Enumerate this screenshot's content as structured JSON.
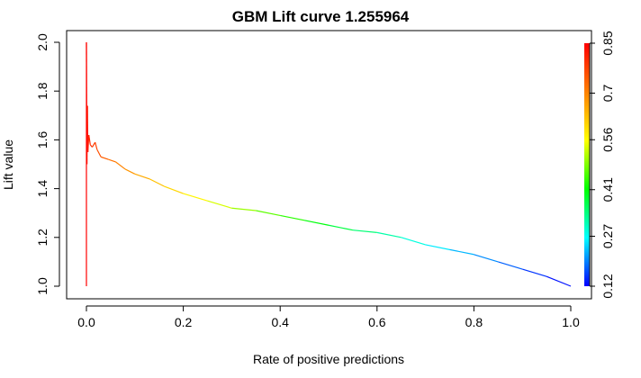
{
  "chart_data": {
    "type": "line",
    "title": "GBM Lift curve 1.255964",
    "xlabel": "Rate of positive predictions",
    "ylabel": "Lift value",
    "xlim": [
      0.0,
      1.0
    ],
    "ylim": [
      1.0,
      2.0
    ],
    "x_ticks": [
      "0.0",
      "0.2",
      "0.4",
      "0.6",
      "0.8",
      "1.0"
    ],
    "y_ticks": [
      "1.0",
      "1.2",
      "1.4",
      "1.6",
      "1.8",
      "2.0"
    ],
    "colorbar": {
      "ticks": [
        "0.12",
        "0.27",
        "0.41",
        "0.56",
        "0.7",
        "0.85"
      ],
      "range": [
        0.12,
        0.85
      ]
    },
    "series": [
      {
        "points": [
          {
            "x": 0.0,
            "y": 1.0,
            "c": 0.85
          },
          {
            "x": 0.0,
            "y": 2.0,
            "c": 0.85
          },
          {
            "x": 0.001,
            "y": 1.5,
            "c": 0.84
          },
          {
            "x": 0.002,
            "y": 1.74,
            "c": 0.83
          },
          {
            "x": 0.003,
            "y": 1.55,
            "c": 0.82
          },
          {
            "x": 0.005,
            "y": 1.62,
            "c": 0.81
          },
          {
            "x": 0.008,
            "y": 1.58,
            "c": 0.8
          },
          {
            "x": 0.012,
            "y": 1.57,
            "c": 0.79
          },
          {
            "x": 0.018,
            "y": 1.59,
            "c": 0.78
          },
          {
            "x": 0.022,
            "y": 1.56,
            "c": 0.77
          },
          {
            "x": 0.03,
            "y": 1.53,
            "c": 0.75
          },
          {
            "x": 0.045,
            "y": 1.52,
            "c": 0.73
          },
          {
            "x": 0.06,
            "y": 1.51,
            "c": 0.71
          },
          {
            "x": 0.08,
            "y": 1.48,
            "c": 0.69
          },
          {
            "x": 0.1,
            "y": 1.46,
            "c": 0.67
          },
          {
            "x": 0.13,
            "y": 1.44,
            "c": 0.64
          },
          {
            "x": 0.16,
            "y": 1.41,
            "c": 0.62
          },
          {
            "x": 0.2,
            "y": 1.38,
            "c": 0.59
          },
          {
            "x": 0.25,
            "y": 1.35,
            "c": 0.55
          },
          {
            "x": 0.3,
            "y": 1.32,
            "c": 0.52
          },
          {
            "x": 0.35,
            "y": 1.31,
            "c": 0.48
          },
          {
            "x": 0.4,
            "y": 1.29,
            "c": 0.45
          },
          {
            "x": 0.45,
            "y": 1.27,
            "c": 0.42
          },
          {
            "x": 0.5,
            "y": 1.25,
            "c": 0.39
          },
          {
            "x": 0.55,
            "y": 1.23,
            "c": 0.36
          },
          {
            "x": 0.6,
            "y": 1.22,
            "c": 0.33
          },
          {
            "x": 0.65,
            "y": 1.2,
            "c": 0.3
          },
          {
            "x": 0.7,
            "y": 1.17,
            "c": 0.27
          },
          {
            "x": 0.75,
            "y": 1.15,
            "c": 0.24
          },
          {
            "x": 0.8,
            "y": 1.13,
            "c": 0.21
          },
          {
            "x": 0.85,
            "y": 1.1,
            "c": 0.19
          },
          {
            "x": 0.9,
            "y": 1.07,
            "c": 0.16
          },
          {
            "x": 0.95,
            "y": 1.04,
            "c": 0.14
          },
          {
            "x": 1.0,
            "y": 1.0,
            "c": 0.12
          }
        ]
      }
    ],
    "grid": false,
    "legend": "colorbar-right"
  }
}
